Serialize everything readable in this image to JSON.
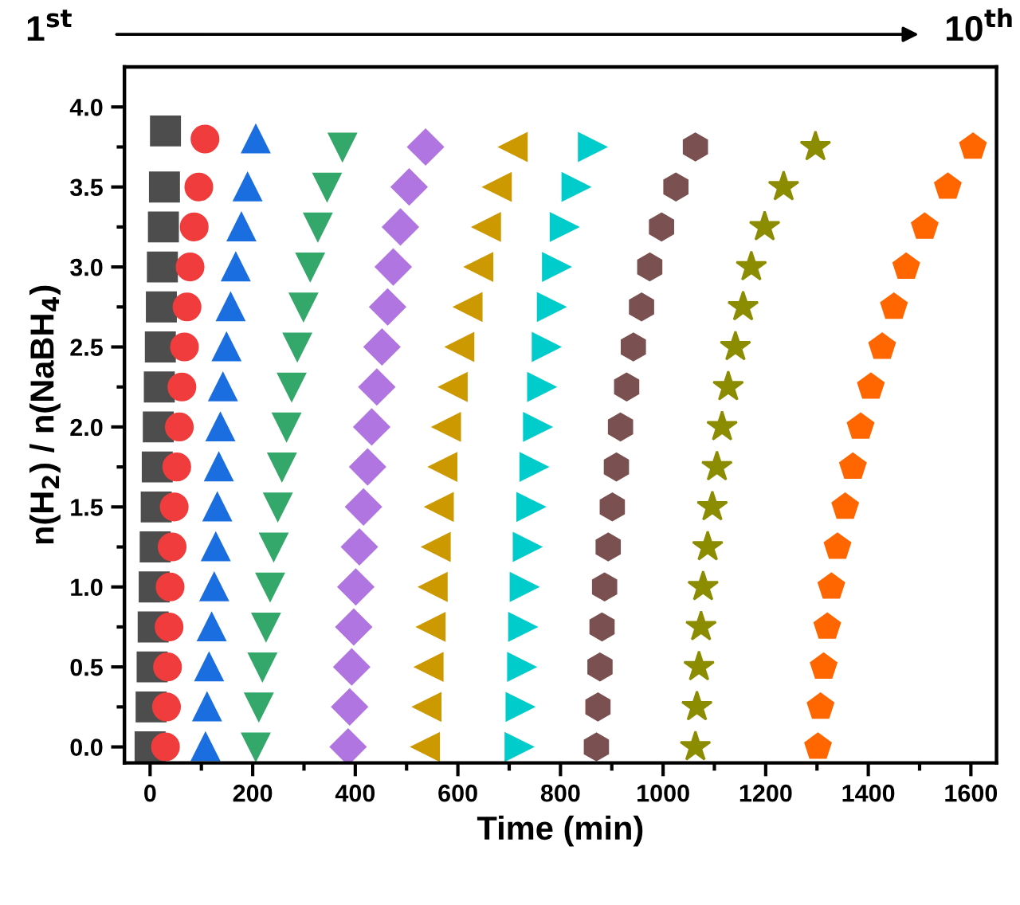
{
  "chart_data": {
    "type": "scatter",
    "xlabel": "Time (min)",
    "ylabel": "n(H$_{2}$) / n(NaBH$_{4}$)",
    "annotations": [
      "1$^{st}$",
      "10$^{th}$"
    ],
    "xlim": [
      -50,
      1650
    ],
    "ylim": [
      -0.1,
      4.25
    ],
    "xticks": [
      0,
      {
        "value": 100,
        "label": null
      },
      200,
      {
        "value": 300,
        "label": null
      },
      400,
      {
        "value": 500,
        "label": null
      },
      600,
      {
        "value": 700,
        "label": null
      },
      800,
      {
        "value": 900,
        "label": null
      },
      1000,
      {
        "value": 1100,
        "label": null
      },
      1200,
      {
        "value": 1300,
        "label": null
      },
      1400,
      {
        "value": 1500,
        "label": null
      },
      1600
    ],
    "yticks": [
      {
        "value": 0,
        "label": "0.0"
      },
      {
        "value": 0.25,
        "label": null
      },
      0.5,
      {
        "value": 0.75,
        "label": null
      },
      {
        "value": 1,
        "label": "1.0"
      },
      {
        "value": 1.25,
        "label": null
      },
      1.5,
      {
        "value": 1.75,
        "label": null
      },
      {
        "value": 2,
        "label": "2.0"
      },
      {
        "value": 2.25,
        "label": null
      },
      2.5,
      {
        "value": 2.75,
        "label": null
      },
      {
        "value": 3,
        "label": "3.0"
      },
      {
        "value": 3.25,
        "label": null
      },
      3.5,
      {
        "value": 3.75,
        "label": null
      },
      {
        "value": 4,
        "label": "4.0"
      }
    ],
    "grid": false,
    "legend": false,
    "series": [
      {
        "color": "#4d4d4d",
        "marker": "square",
        "x": [
          0,
          2,
          4,
          6,
          8,
          10,
          12,
          14,
          16,
          18,
          20,
          22,
          24,
          26,
          28,
          30
        ],
        "values": [
          0,
          0.25,
          0.5,
          0.75,
          1,
          1.25,
          1.5,
          1.75,
          2,
          2.25,
          2.5,
          2.75,
          3,
          3.25,
          3.5,
          3.85
        ]
      },
      {
        "color": "#f03c3c",
        "marker": "circle",
        "x": [
          30,
          32,
          34,
          37,
          39,
          43,
          47,
          52,
          57,
          62,
          67,
          72,
          78,
          86,
          95,
          107
        ],
        "values": [
          0,
          0.25,
          0.5,
          0.75,
          1,
          1.25,
          1.5,
          1.75,
          2,
          2.25,
          2.5,
          2.75,
          3,
          3.25,
          3.5,
          3.8
        ]
      },
      {
        "color": "#1a6ee0",
        "marker": "triangle",
        "x": [
          108,
          111,
          115,
          120,
          125,
          128,
          131,
          134,
          137,
          142,
          149,
          157,
          167,
          178,
          190,
          206
        ],
        "values": [
          0,
          0.25,
          0.5,
          0.75,
          1,
          1.25,
          1.5,
          1.75,
          2,
          2.25,
          2.5,
          2.75,
          3,
          3.25,
          3.5,
          3.8
        ]
      },
      {
        "color": "#33a86a",
        "marker": "triangle-down",
        "x": [
          206,
          212,
          219,
          226,
          234,
          241,
          249,
          257,
          266,
          276,
          287,
          299,
          312,
          327,
          345,
          375
        ],
        "values": [
          0,
          0.25,
          0.5,
          0.75,
          1,
          1.25,
          1.5,
          1.75,
          2,
          2.25,
          2.5,
          2.75,
          3,
          3.25,
          3.5,
          3.75
        ]
      },
      {
        "color": "#b075e0",
        "marker": "diamond",
        "x": [
          386,
          389,
          393,
          397,
          401,
          408,
          416,
          424,
          432,
          442,
          452,
          463,
          474,
          488,
          505,
          537
        ],
        "values": [
          0,
          0.25,
          0.5,
          0.75,
          1,
          1.25,
          1.5,
          1.75,
          2,
          2.25,
          2.5,
          2.75,
          3,
          3.25,
          3.5,
          3.75
        ]
      },
      {
        "color": "#cc9900",
        "marker": "triangle-left",
        "x": [
          537,
          540,
          544,
          548,
          552,
          558,
          564,
          571,
          578,
          591,
          604,
          620,
          641,
          656,
          677,
          708
        ],
        "values": [
          0,
          0.25,
          0.5,
          0.75,
          1,
          1.25,
          1.5,
          1.75,
          2,
          2.25,
          2.5,
          2.75,
          3,
          3.25,
          3.5,
          3.75
        ]
      },
      {
        "color": "#00cccc",
        "marker": "triangle-right",
        "x": [
          719,
          721,
          724,
          726,
          729,
          735,
          742,
          748,
          755,
          763,
          772,
          782,
          792,
          807,
          830,
          862
        ],
        "values": [
          0,
          0.25,
          0.5,
          0.75,
          1,
          1.25,
          1.5,
          1.75,
          2,
          2.25,
          2.5,
          2.75,
          3,
          3.25,
          3.5,
          3.75
        ]
      },
      {
        "color": "#7a5050",
        "x": [
          870,
          873,
          877,
          881,
          886,
          893,
          901,
          909,
          917,
          929,
          942,
          958,
          974,
          997,
          1025,
          1063
        ],
        "values": [
          0,
          0.25,
          0.5,
          0.75,
          1,
          1.25,
          1.5,
          1.75,
          2,
          2.25,
          2.5,
          2.75,
          3,
          3.25,
          3.5,
          3.75
        ]
      },
      {
        "color": "#8c8c00",
        "marker": "star",
        "x": [
          1063,
          1066,
          1070,
          1074,
          1078,
          1087,
          1096,
          1105,
          1115,
          1127,
          1141,
          1156,
          1172,
          1198,
          1235,
          1297
        ],
        "values": [
          0,
          0.25,
          0.5,
          0.75,
          1,
          1.25,
          1.5,
          1.75,
          2,
          2.25,
          2.5,
          2.75,
          3,
          3.25,
          3.5,
          3.75
        ]
      },
      {
        "color": "#ff6600",
        "x": [
          1302,
          1307,
          1313,
          1320,
          1328,
          1340,
          1355,
          1370,
          1385,
          1405,
          1427,
          1450,
          1474,
          1510,
          1555,
          1604
        ],
        "values": [
          0,
          0.25,
          0.5,
          0.75,
          1,
          1.25,
          1.5,
          1.75,
          2,
          2.25,
          2.5,
          2.75,
          3,
          3.25,
          3.5,
          3.75
        ]
      }
    ]
  }
}
